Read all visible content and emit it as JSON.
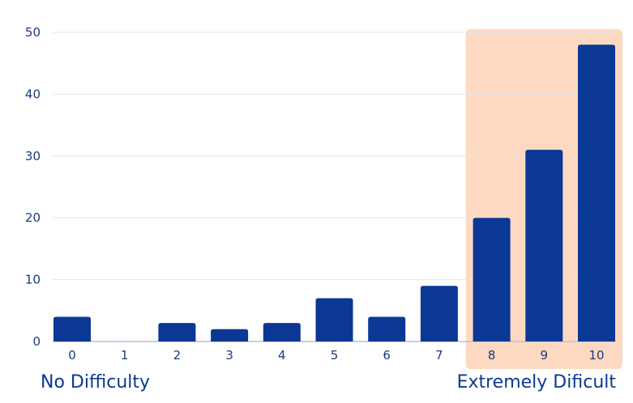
{
  "chart_data": {
    "type": "bar",
    "title": "",
    "xlabel": "",
    "ylabel": "",
    "categories": [
      "0",
      "1",
      "2",
      "3",
      "4",
      "5",
      "6",
      "7",
      "8",
      "9",
      "10"
    ],
    "values": [
      4,
      0,
      3,
      2,
      3,
      7,
      4,
      9,
      20,
      31,
      48
    ],
    "ylim": [
      0,
      50
    ],
    "yticks": [
      "0",
      "10",
      "20",
      "30",
      "40",
      "50"
    ],
    "grid": true,
    "highlight_categories": [
      "8",
      "9",
      "10"
    ],
    "annotations": {
      "left": "No Difficulty",
      "right": "Extremely Dificult"
    },
    "colors": {
      "bar": "#0b3894",
      "highlight": "#fdd9c1",
      "grid": "#e4e6ee",
      "axis": "#b8c2d8"
    }
  }
}
